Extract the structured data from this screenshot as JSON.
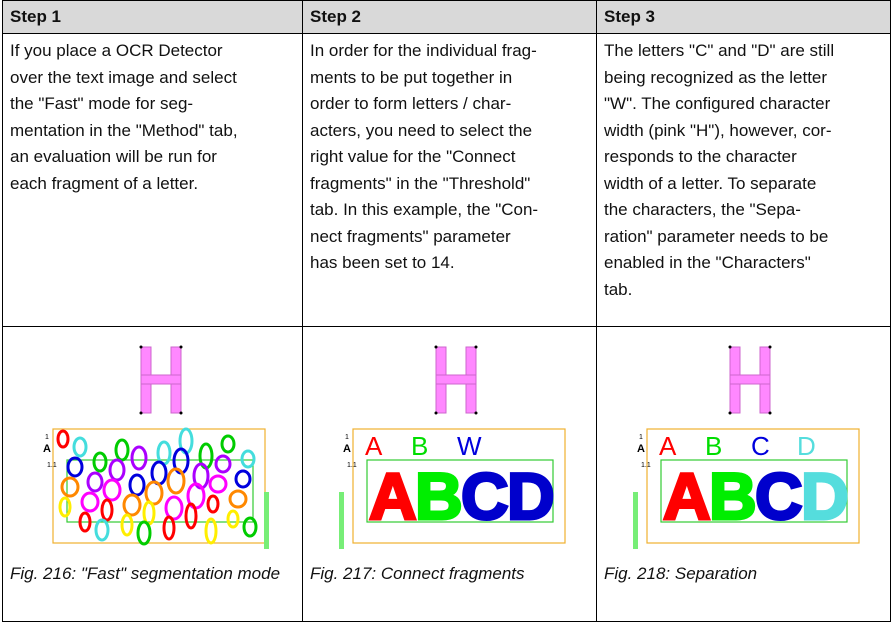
{
  "table": {
    "header": [
      "Step 1",
      "Step 2",
      "Step 3"
    ],
    "text": [
      [
        "If you place a OCR Detector",
        "over the text image and select",
        "the \"Fast\" mode for seg-",
        "mentation in the \"Method\" tab,",
        "an evaluation will be run for",
        "each fragment of a letter."
      ],
      [
        "In order for the individual frag-",
        "ments to be put together in",
        "order to form letters / char-",
        "acters, you need to select the",
        "right value for the \"Connect",
        "fragments\" in the \"Threshold\"",
        "tab. In this example, the \"Con-",
        "nect fragments\" parameter",
        "has been set to 14."
      ],
      [
        "The letters \"C\" and \"D\" are still",
        "being recognized as the letter",
        "\"W\". The configured character",
        "width (pink \"H\"), however, cor-",
        "responds to the character",
        "width of a letter. To separate",
        "the characters, the \"Sepa-",
        "ration\" parameter needs to be",
        "enabled in the \"Characters\"",
        "tab."
      ]
    ],
    "figures": [
      {
        "marker": "A",
        "ticks": [
          "1",
          "1.1"
        ],
        "labels": [],
        "glyphs": [],
        "caption": "Fig. 216: \"Fast\" segmentation mode"
      },
      {
        "marker": "A",
        "ticks": [
          "1",
          "1.1"
        ],
        "labels": [
          {
            "text": "A",
            "color": "#ff0000"
          },
          {
            "text": "B",
            "color": "#00dd00"
          },
          {
            "text": "W",
            "color": "#0000dd"
          }
        ],
        "glyphs": [
          {
            "text": "A",
            "color": "#ff0000"
          },
          {
            "text": "B",
            "color": "#00ee00"
          },
          {
            "text": "C",
            "color": "#0000cc"
          },
          {
            "text": "D",
            "color": "#0000cc"
          }
        ],
        "caption": "Fig. 217: Connect fragments"
      },
      {
        "marker": "A",
        "ticks": [
          "1",
          "1.1"
        ],
        "labels": [
          {
            "text": "A",
            "color": "#ff0000"
          },
          {
            "text": "B",
            "color": "#00dd00"
          },
          {
            "text": "C",
            "color": "#0000dd"
          },
          {
            "text": "D",
            "color": "#55dddd"
          }
        ],
        "glyphs": [
          {
            "text": "A",
            "color": "#ff0000"
          },
          {
            "text": "B",
            "color": "#00ee00"
          },
          {
            "text": "C",
            "color": "#0000cc"
          },
          {
            "text": "D",
            "color": "#55dddd"
          }
        ],
        "caption": "Fig. 218: Separation"
      }
    ]
  }
}
